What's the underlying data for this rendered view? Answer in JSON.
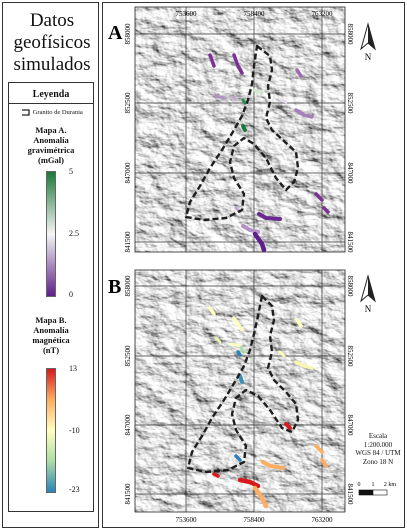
{
  "title": [
    "Datos",
    "geofísicos",
    "simulados"
  ],
  "legend": {
    "heading": "Leyenda",
    "boundary_label": "Granito de Durania",
    "map_a": {
      "title": [
        "Mapa A.",
        "Anomalía",
        "gravimétrica",
        "(mGal)"
      ],
      "max": "5",
      "mid": "2.5",
      "min": "0",
      "colors": [
        "#1a7a38",
        "#f5f5f5",
        "#5e1f8a"
      ]
    },
    "map_b": {
      "title": [
        "Mapa B.",
        "Anomalía",
        "magnética",
        "(nT)"
      ],
      "max": "13",
      "mid": "-10",
      "min": "-23",
      "colors": [
        "#d7191c",
        "#fdae61",
        "#ffffbf",
        "#abdda4",
        "#2b83ba"
      ]
    }
  },
  "panels": [
    {
      "letter": "A",
      "x_ticks": [
        "753600",
        "758400",
        "763200"
      ],
      "y_ticks": [
        "858000",
        "852500",
        "847000",
        "841500"
      ]
    },
    {
      "letter": "B",
      "x_ticks": [
        "753600",
        "758400",
        "763200"
      ],
      "y_ticks": [
        "858000",
        "852500",
        "847000",
        "841500"
      ]
    }
  ],
  "north_label": "N",
  "scale": {
    "lines": [
      "Escala",
      "1:200.000",
      "WGS 84 / UTM",
      "Zono 18 N"
    ],
    "ticks": [
      "0",
      "1",
      "2 km"
    ]
  }
}
